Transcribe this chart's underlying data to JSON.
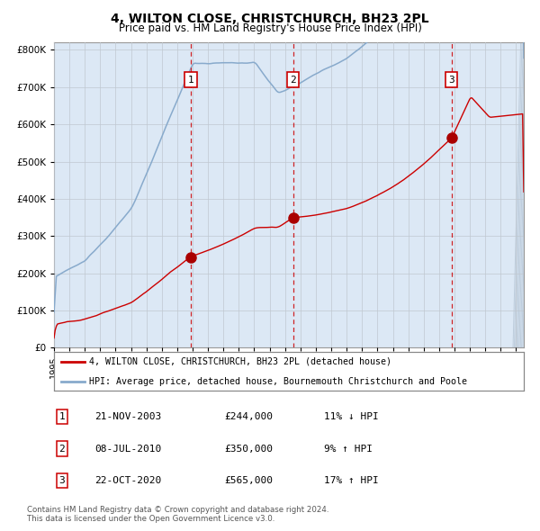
{
  "title": "4, WILTON CLOSE, CHRISTCHURCH, BH23 2PL",
  "subtitle": "Price paid vs. HM Land Registry's House Price Index (HPI)",
  "legend_line1": "4, WILTON CLOSE, CHRISTCHURCH, BH23 2PL (detached house)",
  "legend_line2": "HPI: Average price, detached house, Bournemouth Christchurch and Poole",
  "footer1": "Contains HM Land Registry data © Crown copyright and database right 2024.",
  "footer2": "This data is licensed under the Open Government Licence v3.0.",
  "transactions": [
    {
      "label": "1",
      "date": "21-NOV-2003",
      "price": 244000,
      "pct": "11%",
      "dir": "↓",
      "x_year": 2003.89
    },
    {
      "label": "2",
      "date": "08-JUL-2010",
      "price": 350000,
      "pct": "9%",
      "dir": "↑",
      "x_year": 2010.52
    },
    {
      "label": "3",
      "date": "22-OCT-2020",
      "price": 565000,
      "pct": "17%",
      "dir": "↑",
      "x_year": 2020.81
    }
  ],
  "ylim": [
    0,
    820000
  ],
  "xlim_start": 1995,
  "xlim_end": 2025.5,
  "plot_bg": "#dce8f5",
  "red_line_color": "#cc0000",
  "blue_line_color": "#88aacc",
  "grid_color": "#c0c8d0",
  "dashed_line_color": "#cc0000",
  "marker_color": "#aa0000",
  "box_color": "#cc0000",
  "title_fontsize": 10,
  "subtitle_fontsize": 8.5
}
